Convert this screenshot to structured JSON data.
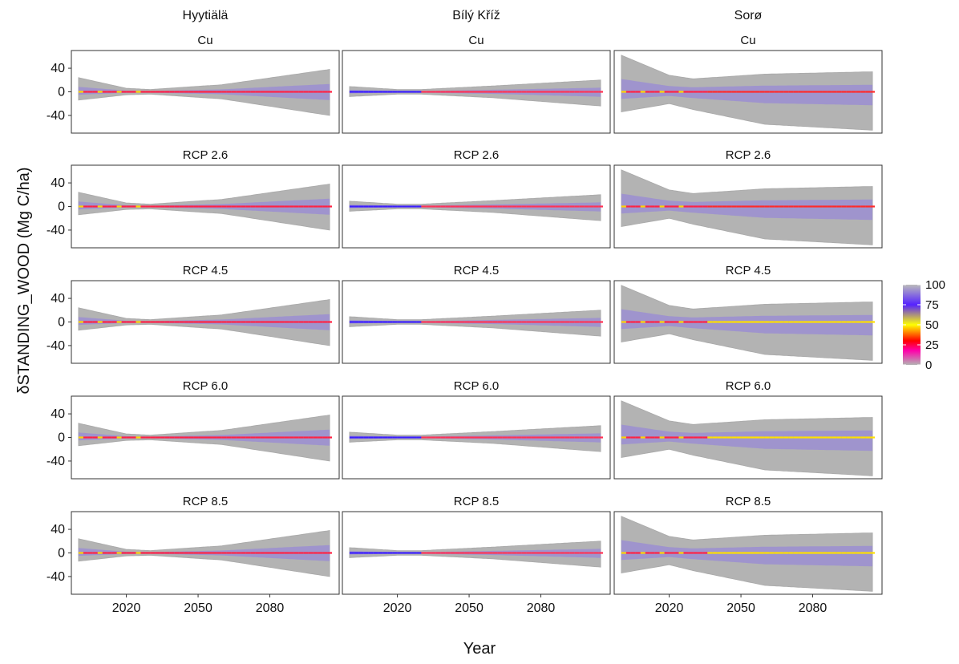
{
  "chart_data": {
    "type": "area",
    "xlabel": "Year",
    "ylabel": "δSTANDING_WOOD (Mg C/ha)",
    "columns": [
      "Hyytiälä",
      "Bílý Kříž",
      "Sorø"
    ],
    "rows": [
      "Cu",
      "RCP 2.6",
      "RCP 4.5",
      "RCP 6.0",
      "RCP 8.5"
    ],
    "xlim": [
      1997,
      2109
    ],
    "xticks": [
      2020,
      2050,
      2080
    ],
    "ylim": [
      -70,
      70
    ],
    "yticks": [
      40,
      0,
      -40
    ],
    "legend": {
      "position": "right",
      "ticks": [
        100,
        75,
        50,
        25,
        0
      ]
    },
    "colors": {
      "envelope": "#b3b3b3",
      "panel_border": "#333333",
      "gradient": [
        "#b3b3b3",
        "#ff00aa",
        "#ff0000",
        "#ffff00",
        "#5522ff",
        "#bbbbbb"
      ]
    },
    "envelopes": {
      "Hyytiälä": {
        "x": [
          2000,
          2020,
          2030,
          2060,
          2105
        ],
        "upper": [
          24,
          6,
          4,
          12,
          38
        ],
        "lower": [
          -14,
          -5,
          -4,
          -12,
          -40
        ]
      },
      "Bílý Kříž": {
        "x": [
          2000,
          2020,
          2030,
          2060,
          2105
        ],
        "upper": [
          9,
          4,
          4,
          10,
          20
        ],
        "lower": [
          -8,
          -4,
          -4,
          -10,
          -24
        ]
      },
      "Sorø": {
        "x": [
          2000,
          2020,
          2030,
          2060,
          2105
        ],
        "upper": [
          62,
          28,
          22,
          30,
          34
        ],
        "lower": [
          -34,
          -20,
          -30,
          -55,
          -65
        ]
      }
    }
  },
  "panels": [
    {
      "col": "Hyytiälä",
      "row": "Cu"
    },
    {
      "col": "Bílý Kříž",
      "row": "Cu"
    },
    {
      "col": "Sorø",
      "row": "Cu"
    },
    {
      "col": "Hyytiälä",
      "row": "RCP 2.6"
    },
    {
      "col": "Bílý Kříž",
      "row": "RCP 2.6"
    },
    {
      "col": "Sorø",
      "row": "RCP 2.6"
    },
    {
      "col": "Hyytiälä",
      "row": "RCP 4.5"
    },
    {
      "col": "Bílý Kříž",
      "row": "RCP 4.5"
    },
    {
      "col": "Sorø",
      "row": "RCP 4.5"
    },
    {
      "col": "Hyytiälä",
      "row": "RCP 6.0"
    },
    {
      "col": "Bílý Kříž",
      "row": "RCP 6.0"
    },
    {
      "col": "Sorø",
      "row": "RCP 6.0"
    },
    {
      "col": "Hyytiälä",
      "row": "RCP 8.5"
    },
    {
      "col": "Bílý Kříž",
      "row": "RCP 8.5"
    },
    {
      "col": "Sorø",
      "row": "RCP 8.5"
    }
  ]
}
